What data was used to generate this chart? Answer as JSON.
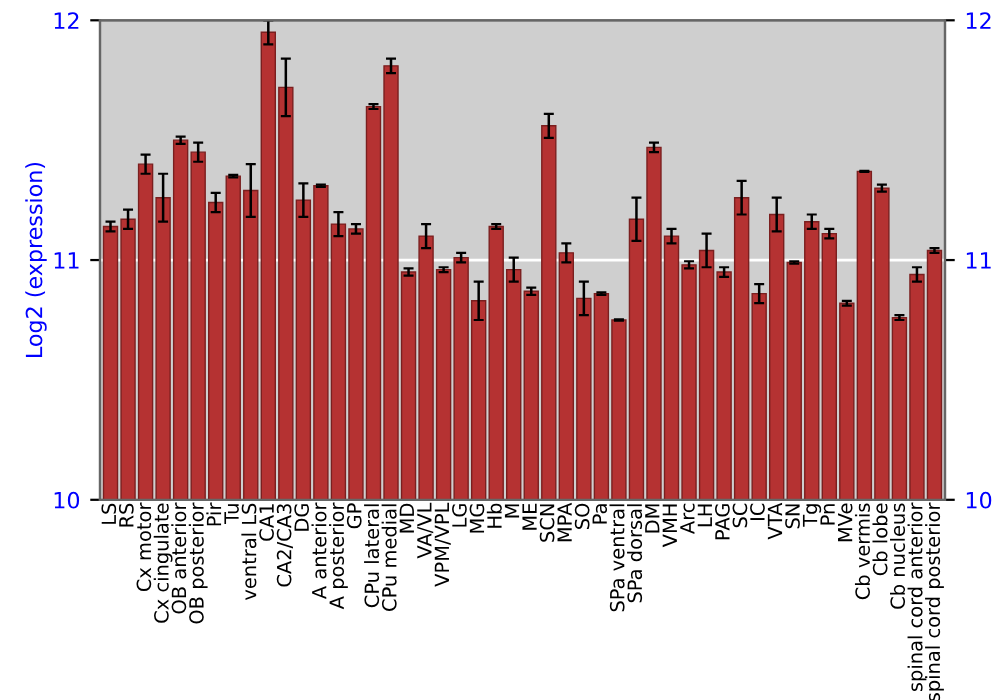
{
  "chart_data": {
    "type": "bar",
    "ylabel": "Log2 (expression)",
    "categories": [
      "LS",
      "RS",
      "Cx motor",
      "Cx cingulate",
      "OB anterior",
      "OB posterior",
      "Pir",
      "Tu",
      "ventral LS",
      "CA1",
      "CA2/CA3",
      "DG",
      "A anterior",
      "A posterior",
      "GP",
      "CPu lateral",
      "CPu medial",
      "MD",
      "VA/VL",
      "VPM/VPL",
      "LG",
      "MG",
      "Hb",
      "M",
      "ME",
      "SCN",
      "MPA",
      "SO",
      "Pa",
      "SPa ventral",
      "SPa dorsal",
      "DM",
      "VMH",
      "Arc",
      "LH",
      "PAG",
      "SC",
      "IC",
      "VTA",
      "SN",
      "Tg",
      "Pn",
      "MVe",
      "Cb vermis",
      "Cb lobe",
      "Cb nucleus",
      "spinal cord anterior",
      "spinal cord posterior"
    ],
    "values": [
      11.14,
      11.17,
      11.4,
      11.26,
      11.5,
      11.45,
      11.24,
      11.35,
      11.29,
      11.95,
      11.72,
      11.25,
      11.31,
      11.15,
      11.13,
      11.64,
      11.81,
      10.95,
      11.1,
      10.96,
      11.01,
      10.83,
      11.14,
      10.96,
      10.87,
      11.56,
      11.03,
      10.84,
      10.86,
      10.75,
      11.17,
      11.47,
      11.1,
      10.98,
      11.04,
      10.95,
      11.26,
      10.86,
      11.19,
      10.99,
      11.16,
      11.11,
      10.82,
      11.37,
      11.3,
      10.76,
      10.94,
      11.04
    ],
    "errors": [
      0.02,
      0.04,
      0.04,
      0.1,
      0.015,
      0.04,
      0.04,
      0.005,
      0.11,
      0.05,
      0.12,
      0.07,
      0.005,
      0.05,
      0.02,
      0.01,
      0.03,
      0.015,
      0.05,
      0.01,
      0.02,
      0.08,
      0.01,
      0.05,
      0.015,
      0.05,
      0.04,
      0.07,
      0.005,
      0.003,
      0.09,
      0.02,
      0.03,
      0.015,
      0.07,
      0.02,
      0.07,
      0.04,
      0.07,
      0.005,
      0.03,
      0.02,
      0.01,
      0.002,
      0.015,
      0.01,
      0.03,
      0.01
    ],
    "color": "#b53232",
    "ylim": [
      10,
      12
    ],
    "yticks": [
      10,
      11,
      12
    ],
    "y2lim": [
      10,
      12
    ],
    "y2ticks": [
      10,
      11,
      12
    ],
    "grid": "y"
  }
}
